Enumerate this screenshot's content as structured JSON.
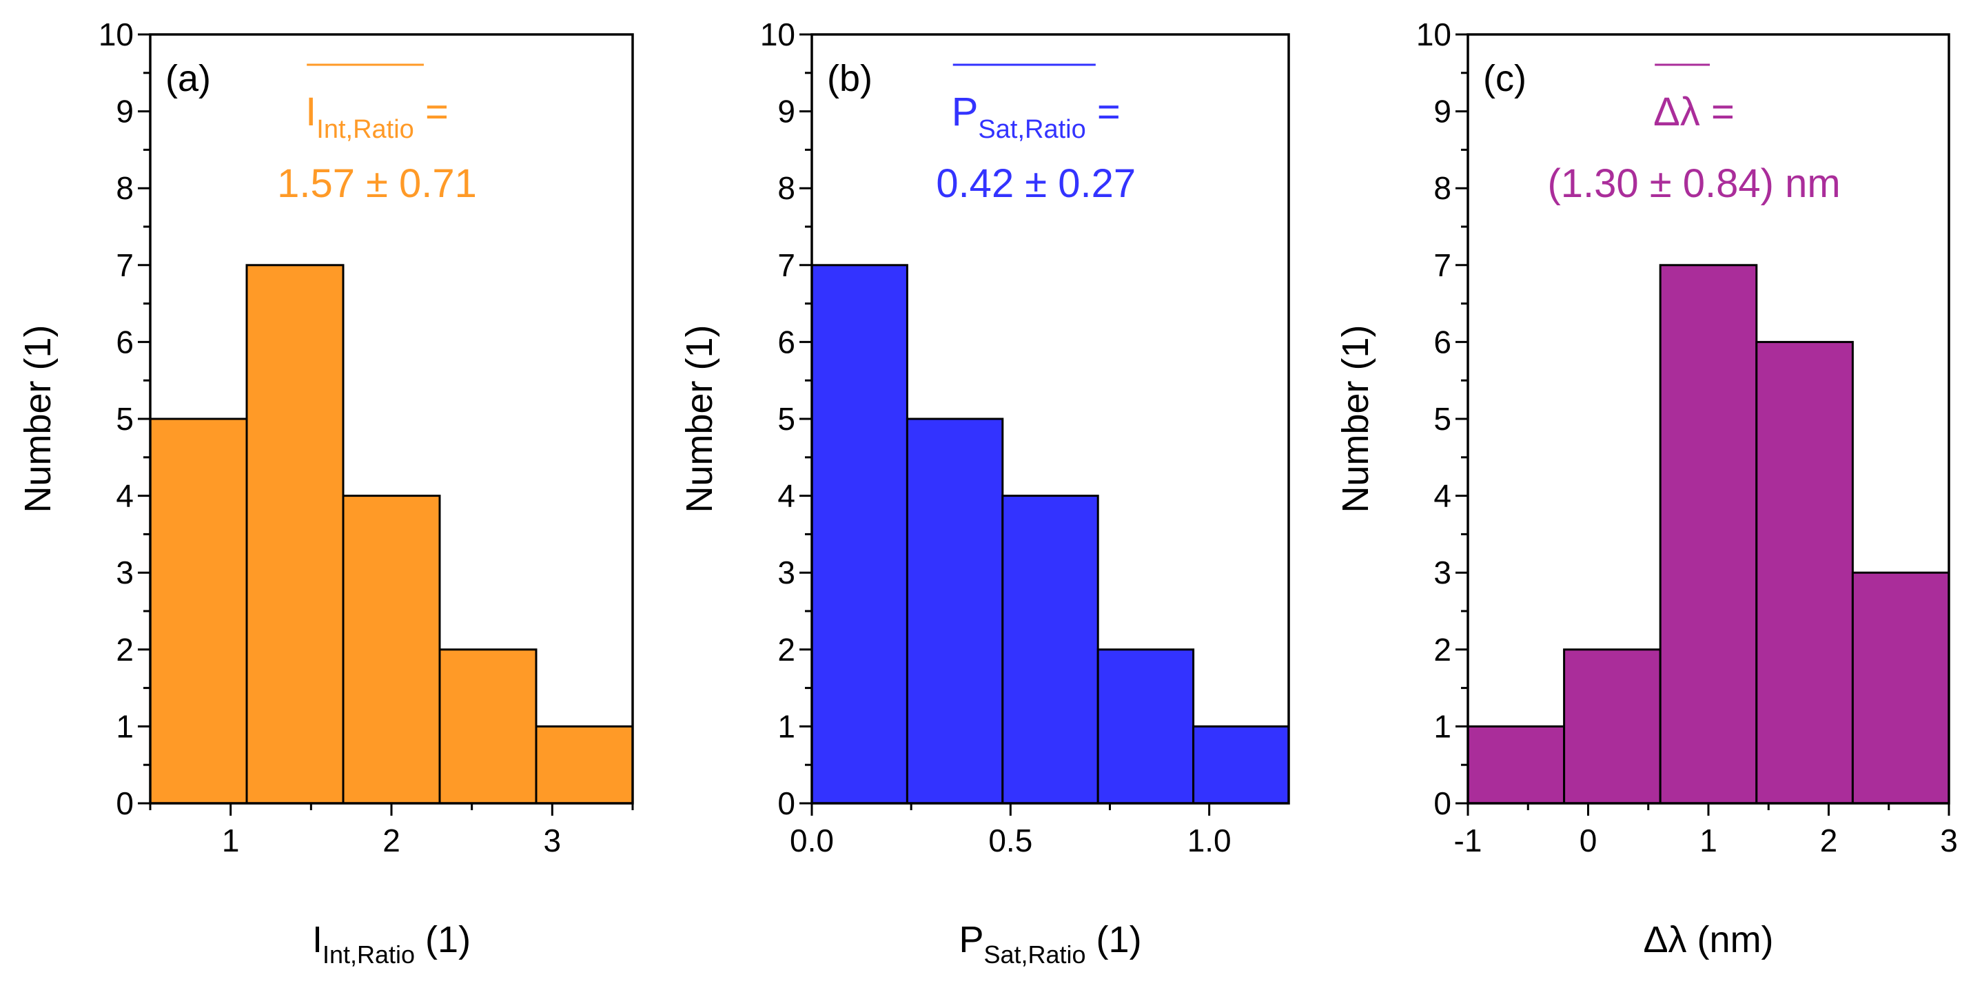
{
  "figure": {
    "title": ""
  },
  "chart_data": [
    {
      "type": "bar",
      "panel_label": "(a)",
      "color": "#FF9A27",
      "annotation": {
        "symbol": "I",
        "subscript": "Int,Ratio",
        "equals": " =",
        "value": "1.57 ± 0.71"
      },
      "xlabel": {
        "main": "I",
        "sub": "Int,Ratio",
        "unit": " (1)"
      },
      "ylabel": "Number (1)",
      "bin_edges": [
        0.5,
        1.1,
        1.7,
        2.3,
        2.9,
        3.5
      ],
      "values": [
        5,
        7,
        4,
        2,
        1
      ],
      "xlim": [
        0.5,
        3.5
      ],
      "ylim": [
        0,
        10
      ],
      "x_ticks": [
        1,
        2,
        3
      ],
      "x_tick_labels": [
        "1",
        "2",
        "3"
      ],
      "x_minor_ticks": [
        0.5,
        1.5,
        2.5,
        3.5
      ],
      "y_ticks": [
        0,
        1,
        2,
        3,
        4,
        5,
        6,
        7,
        8,
        9,
        10
      ],
      "y_tick_labels": [
        "0",
        "1",
        "2",
        "3",
        "4",
        "5",
        "6",
        "7",
        "8",
        "9",
        "10"
      ]
    },
    {
      "type": "bar",
      "panel_label": "(b)",
      "color": "#3333FF",
      "annotation": {
        "symbol": "P",
        "subscript": "Sat,Ratio",
        "equals": " =",
        "value": "0.42 ± 0.27"
      },
      "xlabel": {
        "main": "P",
        "sub": "Sat,Ratio",
        "unit": " (1)"
      },
      "ylabel": "Number (1)",
      "bin_edges": [
        0.0,
        0.24,
        0.48,
        0.72,
        0.96,
        1.2
      ],
      "values": [
        7,
        5,
        4,
        2,
        1
      ],
      "xlim": [
        0.0,
        1.2
      ],
      "ylim": [
        0,
        10
      ],
      "x_ticks": [
        0.0,
        0.5,
        1.0
      ],
      "x_tick_labels": [
        "0.0",
        "0.5",
        "1.0"
      ],
      "x_minor_ticks": [
        0.25,
        0.75
      ],
      "y_ticks": [
        0,
        1,
        2,
        3,
        4,
        5,
        6,
        7,
        8,
        9,
        10
      ],
      "y_tick_labels": [
        "0",
        "1",
        "2",
        "3",
        "4",
        "5",
        "6",
        "7",
        "8",
        "9",
        "10"
      ]
    },
    {
      "type": "bar",
      "panel_label": "(c)",
      "color": "#AA2D9A",
      "annotation": {
        "symbol": "Δλ",
        "subscript": "",
        "equals": " =",
        "value_prefix": "(",
        "value": "1.30 ± 0.84",
        "value_suffix": ") nm"
      },
      "xlabel": {
        "main": "Δλ",
        "sub": "",
        "unit": " (nm)"
      },
      "ylabel": "Number (1)",
      "bin_edges": [
        -1.0,
        -0.2,
        0.6,
        1.4,
        2.2,
        3.0
      ],
      "values": [
        1,
        2,
        7,
        6,
        3
      ],
      "xlim": [
        -1.0,
        3.0
      ],
      "ylim": [
        0,
        10
      ],
      "x_ticks": [
        -1,
        0,
        1,
        2,
        3
      ],
      "x_tick_labels": [
        "-1",
        "0",
        "1",
        "2",
        "3"
      ],
      "x_minor_ticks": [
        -0.5,
        0.5,
        1.5,
        2.5
      ],
      "y_ticks": [
        0,
        1,
        2,
        3,
        4,
        5,
        6,
        7,
        8,
        9,
        10
      ],
      "y_tick_labels": [
        "0",
        "1",
        "2",
        "3",
        "4",
        "5",
        "6",
        "7",
        "8",
        "9",
        "10"
      ]
    }
  ]
}
